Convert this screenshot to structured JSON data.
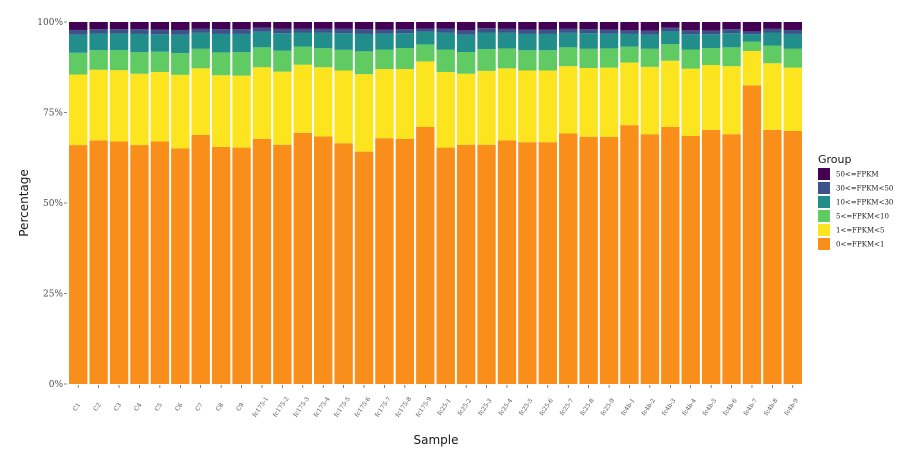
{
  "chart_data": {
    "type": "bar",
    "stacked": true,
    "xlabel": "Sample",
    "ylabel": "Percentage",
    "ylim": [
      0,
      100
    ],
    "y_ticks": [
      "0%",
      "25%",
      "50%",
      "75%",
      "100%"
    ],
    "legend_title": "Group",
    "legend_position": "right",
    "categories": [
      "C1",
      "C2",
      "C3",
      "C4",
      "C5",
      "C6",
      "C7",
      "C8",
      "C9",
      "fc175-1",
      "fc175-2",
      "fc175-3",
      "fc175-4",
      "fc175-5",
      "fc175-6",
      "fc175-7",
      "fc175-8",
      "fc175-9",
      "fc25-1",
      "fc25-2",
      "fc25-3",
      "fc25-4",
      "fc25-5",
      "fc25-6",
      "fc25-7",
      "fc25-8",
      "fc25-9",
      "fc4b-1",
      "fc4b-2",
      "fc4b-3",
      "fc4b-4",
      "fc4b-5",
      "fc4b-6",
      "fc4b-7",
      "fc4b-8",
      "fc4b-9"
    ],
    "series": [
      {
        "name": "0<=FPKM<1",
        "color": "#f98e1b",
        "values": [
          66.0,
          67.3,
          67.0,
          66.0,
          67.0,
          65.1,
          68.8,
          65.5,
          65.3,
          67.7,
          66.1,
          69.4,
          68.4,
          66.5,
          64.2,
          67.9,
          67.7,
          71.0,
          65.3,
          66.1,
          66.1,
          67.3,
          66.8,
          66.8,
          69.2,
          68.3,
          68.3,
          71.5,
          69.0,
          71.0,
          68.5,
          70.2,
          69.0,
          82.5,
          70.2,
          69.9
        ]
      },
      {
        "name": "1<=FPKM<5",
        "color": "#fce41e",
        "values": [
          19.5,
          19.5,
          19.7,
          19.7,
          19.2,
          20.3,
          18.4,
          19.8,
          19.9,
          19.8,
          20.2,
          18.8,
          19.1,
          20.1,
          21.4,
          19.1,
          19.3,
          18.1,
          20.9,
          19.6,
          20.4,
          19.9,
          19.8,
          19.8,
          18.6,
          19.0,
          19.1,
          17.3,
          18.6,
          18.3,
          18.6,
          17.9,
          18.8,
          9.5,
          18.4,
          17.5
        ]
      },
      {
        "name": "5<=FPKM<10",
        "color": "#5fcb62",
        "values": [
          6.0,
          5.4,
          5.5,
          6.0,
          5.6,
          6.0,
          5.4,
          6.3,
          6.5,
          5.5,
          5.8,
          5.0,
          5.3,
          5.7,
          6.3,
          5.4,
          5.8,
          4.7,
          6.2,
          6.0,
          6.0,
          5.5,
          5.6,
          5.6,
          5.2,
          5.3,
          5.3,
          4.4,
          5.0,
          4.6,
          5.3,
          4.7,
          5.2,
          2.6,
          4.9,
          5.2
        ]
      },
      {
        "name": "10<=FPKM<30",
        "color": "#218e8c",
        "values": [
          5.0,
          4.6,
          4.6,
          5.0,
          4.8,
          5.1,
          4.4,
          5.1,
          5.0,
          4.3,
          4.8,
          3.9,
          4.2,
          4.6,
          4.8,
          4.4,
          4.1,
          3.5,
          4.6,
          4.8,
          4.6,
          4.3,
          4.5,
          4.5,
          4.0,
          4.3,
          4.1,
          3.5,
          3.9,
          3.5,
          4.2,
          3.8,
          3.9,
          2.0,
          3.6,
          4.1
        ]
      },
      {
        "name": "30<=FPKM<50",
        "color": "#3b528b",
        "values": [
          1.3,
          1.2,
          1.2,
          1.3,
          1.3,
          1.3,
          1.1,
          1.3,
          1.3,
          1.1,
          1.2,
          1.0,
          1.1,
          1.2,
          1.3,
          1.1,
          1.1,
          0.9,
          1.2,
          1.2,
          1.2,
          1.1,
          1.2,
          1.2,
          1.1,
          1.1,
          1.1,
          1.0,
          1.1,
          1.0,
          1.1,
          1.0,
          1.1,
          0.8,
          1.0,
          1.1
        ]
      },
      {
        "name": "50<=FPKM",
        "color": "#440154",
        "values": [
          2.2,
          2.0,
          2.0,
          2.0,
          2.1,
          2.2,
          1.9,
          2.0,
          2.0,
          1.6,
          1.9,
          1.9,
          1.9,
          1.9,
          2.0,
          2.1,
          2.0,
          1.8,
          1.8,
          2.3,
          1.7,
          1.9,
          2.1,
          2.1,
          1.9,
          2.0,
          2.1,
          2.3,
          2.4,
          1.6,
          2.3,
          2.4,
          2.0,
          2.6,
          1.9,
          2.2
        ]
      }
    ]
  }
}
